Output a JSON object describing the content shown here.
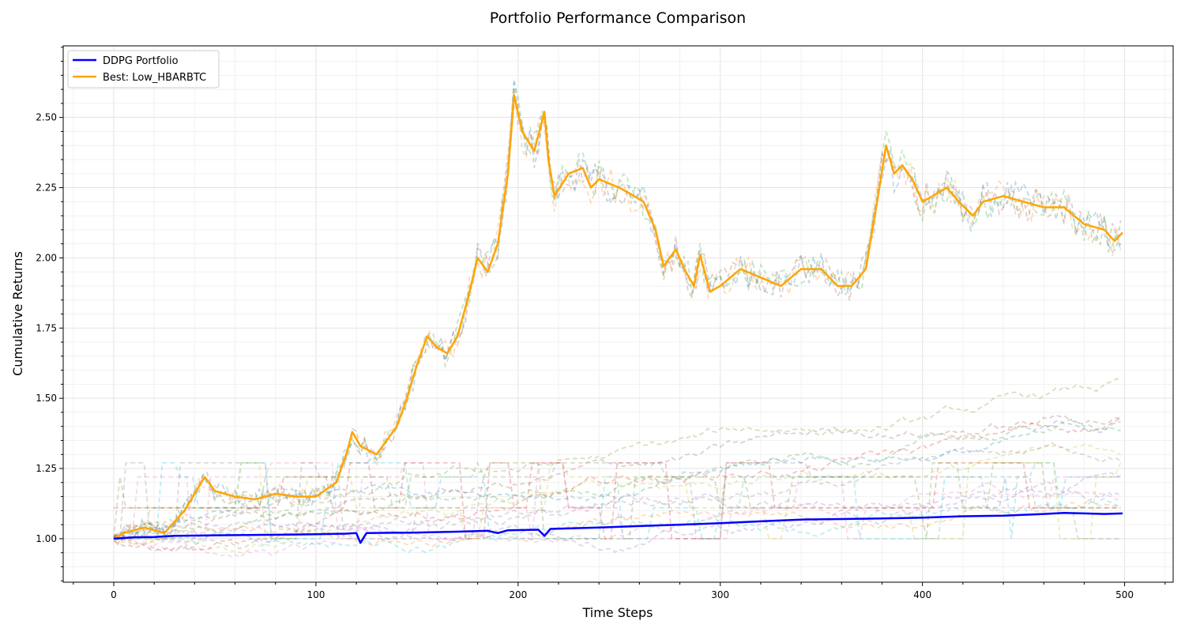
{
  "chart_data": {
    "type": "line",
    "title": "Portfolio Performance Comparison",
    "xlabel": "Time Steps",
    "ylabel": "Cumulative Returns",
    "xlim": [
      -25,
      524
    ],
    "ylim": [
      0.845,
      2.755
    ],
    "xticks": [
      0,
      100,
      200,
      300,
      400,
      500
    ],
    "yticks": [
      1.0,
      1.25,
      1.5,
      1.75,
      2.0,
      2.25,
      2.5
    ],
    "ytick_labels": [
      "1.00",
      "1.25",
      "1.50",
      "1.75",
      "2.00",
      "2.25",
      "2.50"
    ],
    "grid": true,
    "legend_position": "top-left",
    "series": [
      {
        "name": "DDPG Portfolio",
        "color": "#0000ff",
        "style": "solid",
        "points": [
          [
            0,
            1.0
          ],
          [
            10,
            1.005
          ],
          [
            20,
            1.006
          ],
          [
            30,
            1.01
          ],
          [
            50,
            1.012
          ],
          [
            80,
            1.014
          ],
          [
            100,
            1.016
          ],
          [
            115,
            1.018
          ],
          [
            120,
            1.02
          ],
          [
            122,
            0.985
          ],
          [
            125,
            1.02
          ],
          [
            150,
            1.022
          ],
          [
            170,
            1.025
          ],
          [
            185,
            1.028
          ],
          [
            190,
            1.02
          ],
          [
            195,
            1.03
          ],
          [
            210,
            1.032
          ],
          [
            213,
            1.01
          ],
          [
            216,
            1.035
          ],
          [
            240,
            1.04
          ],
          [
            260,
            1.045
          ],
          [
            280,
            1.05
          ],
          [
            300,
            1.055
          ],
          [
            320,
            1.062
          ],
          [
            340,
            1.068
          ],
          [
            360,
            1.07
          ],
          [
            380,
            1.072
          ],
          [
            400,
            1.075
          ],
          [
            420,
            1.08
          ],
          [
            440,
            1.082
          ],
          [
            460,
            1.088
          ],
          [
            470,
            1.092
          ],
          [
            480,
            1.09
          ],
          [
            490,
            1.088
          ],
          [
            499,
            1.09
          ]
        ]
      },
      {
        "name": "Best: Low_HBARBTC",
        "color": "#ffa500",
        "style": "solid",
        "points": [
          [
            0,
            1.0
          ],
          [
            5,
            1.02
          ],
          [
            15,
            1.04
          ],
          [
            25,
            1.02
          ],
          [
            35,
            1.1
          ],
          [
            45,
            1.22
          ],
          [
            50,
            1.17
          ],
          [
            60,
            1.15
          ],
          [
            70,
            1.14
          ],
          [
            80,
            1.16
          ],
          [
            90,
            1.15
          ],
          [
            100,
            1.15
          ],
          [
            110,
            1.2
          ],
          [
            115,
            1.3
          ],
          [
            118,
            1.38
          ],
          [
            122,
            1.33
          ],
          [
            130,
            1.3
          ],
          [
            140,
            1.4
          ],
          [
            145,
            1.5
          ],
          [
            150,
            1.62
          ],
          [
            155,
            1.72
          ],
          [
            160,
            1.68
          ],
          [
            165,
            1.66
          ],
          [
            170,
            1.72
          ],
          [
            175,
            1.85
          ],
          [
            180,
            2.0
          ],
          [
            185,
            1.95
          ],
          [
            190,
            2.05
          ],
          [
            195,
            2.3
          ],
          [
            198,
            2.58
          ],
          [
            202,
            2.45
          ],
          [
            208,
            2.38
          ],
          [
            213,
            2.52
          ],
          [
            215,
            2.35
          ],
          [
            218,
            2.22
          ],
          [
            225,
            2.3
          ],
          [
            232,
            2.32
          ],
          [
            236,
            2.25
          ],
          [
            240,
            2.28
          ],
          [
            250,
            2.25
          ],
          [
            255,
            2.23
          ],
          [
            262,
            2.2
          ],
          [
            268,
            2.1
          ],
          [
            272,
            1.97
          ],
          [
            278,
            2.03
          ],
          [
            283,
            1.95
          ],
          [
            287,
            1.9
          ],
          [
            290,
            2.01
          ],
          [
            295,
            1.88
          ],
          [
            300,
            1.9
          ],
          [
            310,
            1.96
          ],
          [
            320,
            1.93
          ],
          [
            330,
            1.9
          ],
          [
            340,
            1.96
          ],
          [
            350,
            1.96
          ],
          [
            358,
            1.9
          ],
          [
            365,
            1.9
          ],
          [
            372,
            1.96
          ],
          [
            378,
            2.22
          ],
          [
            382,
            2.4
          ],
          [
            386,
            2.3
          ],
          [
            390,
            2.33
          ],
          [
            395,
            2.28
          ],
          [
            400,
            2.2
          ],
          [
            405,
            2.22
          ],
          [
            412,
            2.25
          ],
          [
            418,
            2.2
          ],
          [
            425,
            2.15
          ],
          [
            430,
            2.2
          ],
          [
            440,
            2.22
          ],
          [
            450,
            2.2
          ],
          [
            460,
            2.18
          ],
          [
            470,
            2.18
          ],
          [
            475,
            2.15
          ],
          [
            480,
            2.12
          ],
          [
            490,
            2.1
          ],
          [
            495,
            2.06
          ],
          [
            499,
            2.09
          ]
        ]
      }
    ],
    "background_series_count": 22
  }
}
